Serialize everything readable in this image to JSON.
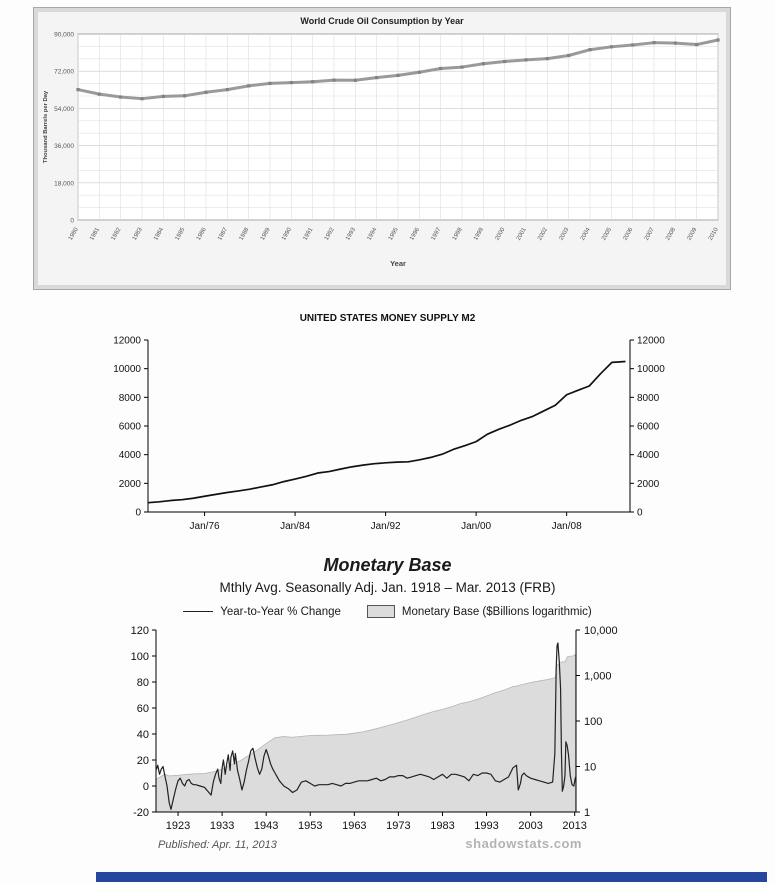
{
  "chart_data": [
    {
      "id": "world-crude-oil",
      "type": "line",
      "title": "World Crude Oil Consumption by Year",
      "xlabel": "Year",
      "ylabel": "Thousand Barrels per Day",
      "ylim": [
        0,
        90000
      ],
      "ytick_step": 18000,
      "grid": true,
      "line_color": "#9a9a9a",
      "marker_color": "#828282",
      "categories": [
        1980,
        1981,
        1982,
        1983,
        1984,
        1985,
        1986,
        1987,
        1988,
        1989,
        1990,
        1991,
        1992,
        1993,
        1994,
        1995,
        1996,
        1997,
        1998,
        1999,
        2000,
        2001,
        2002,
        2003,
        2004,
        2005,
        2006,
        2007,
        2008,
        2009,
        2010
      ],
      "values": [
        63100,
        60900,
        59500,
        58700,
        59800,
        60100,
        61800,
        63100,
        64900,
        66100,
        66500,
        66900,
        67700,
        67600,
        68900,
        70000,
        71500,
        73300,
        74000,
        75600,
        76700,
        77500,
        78100,
        79600,
        82400,
        83800,
        84700,
        85800,
        85600,
        84900,
        87100
      ]
    },
    {
      "id": "us-money-supply-m2",
      "type": "line",
      "title": "UNITED STATES MONEY SUPPLY M2",
      "ylim": [
        0,
        12000
      ],
      "ytick_step": 2000,
      "xlim": [
        1971,
        2013.6
      ],
      "line_color": "#111111",
      "xticks": [
        {
          "pos": 1976,
          "label": "Jan/76"
        },
        {
          "pos": 1984,
          "label": "Jan/84"
        },
        {
          "pos": 1992,
          "label": "Jan/92"
        },
        {
          "pos": 2000,
          "label": "Jan/00"
        },
        {
          "pos": 2008,
          "label": "Jan/08"
        }
      ],
      "points": [
        [
          1971,
          650
        ],
        [
          1972,
          710
        ],
        [
          1973,
          800
        ],
        [
          1974,
          860
        ],
        [
          1975,
          960
        ],
        [
          1976,
          1100
        ],
        [
          1977,
          1230
        ],
        [
          1978,
          1360
        ],
        [
          1979,
          1470
        ],
        [
          1980,
          1590
        ],
        [
          1981,
          1750
        ],
        [
          1982,
          1900
        ],
        [
          1983,
          2120
        ],
        [
          1984,
          2300
        ],
        [
          1985,
          2490
        ],
        [
          1986,
          2720
        ],
        [
          1987,
          2820
        ],
        [
          1988,
          2990
        ],
        [
          1989,
          3150
        ],
        [
          1990,
          3270
        ],
        [
          1991,
          3370
        ],
        [
          1992,
          3430
        ],
        [
          1993,
          3480
        ],
        [
          1994,
          3500
        ],
        [
          1995,
          3640
        ],
        [
          1996,
          3810
        ],
        [
          1997,
          4030
        ],
        [
          1998,
          4370
        ],
        [
          1999,
          4630
        ],
        [
          2000,
          4910
        ],
        [
          2001,
          5430
        ],
        [
          2002,
          5770
        ],
        [
          2003,
          6060
        ],
        [
          2004,
          6400
        ],
        [
          2005,
          6670
        ],
        [
          2006,
          7060
        ],
        [
          2007,
          7450
        ],
        [
          2008,
          8180
        ],
        [
          2009,
          8490
        ],
        [
          2010,
          8790
        ],
        [
          2011,
          9650
        ],
        [
          2012,
          10440
        ],
        [
          2013.2,
          10500
        ]
      ]
    },
    {
      "id": "monetary-base",
      "type": "line+area",
      "title": "Monetary Base",
      "subtitle": "Mthly Avg. Seasonally Adj. Jan. 1918 – Mar. 2013  (FRB)",
      "published": "Published: Apr. 11, 2013",
      "watermark": "shadowstats.com",
      "legend": [
        {
          "label": "Year-to-Year % Change",
          "type": "line",
          "color": "#222222"
        },
        {
          "label": "Monetary Base ($Billions logarithmic)",
          "type": "area",
          "color": "#dcdcdc"
        }
      ],
      "left_axis": {
        "min": -20,
        "max": 120,
        "step": 20
      },
      "right_axis": {
        "scale": "log",
        "min": 1,
        "max": 10000,
        "labels": [
          "1",
          "10",
          "100",
          "1,000",
          "10,000"
        ]
      },
      "xlim": [
        1918,
        2013.3
      ],
      "xticks": [
        1923,
        1933,
        1943,
        1953,
        1963,
        1973,
        1983,
        1993,
        2003,
        2013
      ],
      "base": [
        [
          1918,
          5.2
        ],
        [
          1920,
          6.8
        ],
        [
          1921,
          6.2
        ],
        [
          1923,
          6.4
        ],
        [
          1925,
          6.7
        ],
        [
          1927,
          6.9
        ],
        [
          1929,
          7.0
        ],
        [
          1931,
          7.6
        ],
        [
          1933,
          8.7
        ],
        [
          1935,
          10.8
        ],
        [
          1937,
          13.2
        ],
        [
          1939,
          17.5
        ],
        [
          1941,
          23
        ],
        [
          1943,
          32
        ],
        [
          1945,
          43
        ],
        [
          1947,
          45.5
        ],
        [
          1949,
          44
        ],
        [
          1951,
          46
        ],
        [
          1953,
          48
        ],
        [
          1955,
          48.5
        ],
        [
          1957,
          49
        ],
        [
          1959,
          50
        ],
        [
          1961,
          51
        ],
        [
          1963,
          54
        ],
        [
          1965,
          58
        ],
        [
          1967,
          64
        ],
        [
          1969,
          72
        ],
        [
          1971,
          81
        ],
        [
          1973,
          92
        ],
        [
          1975,
          105
        ],
        [
          1977,
          122
        ],
        [
          1979,
          142
        ],
        [
          1981,
          162
        ],
        [
          1983,
          180
        ],
        [
          1985,
          205
        ],
        [
          1987,
          240
        ],
        [
          1989,
          265
        ],
        [
          1991,
          300
        ],
        [
          1993,
          355
        ],
        [
          1995,
          420
        ],
        [
          1997,
          480
        ],
        [
          1999,
          570
        ],
        [
          2000,
          590
        ],
        [
          2001,
          630
        ],
        [
          2003,
          700
        ],
        [
          2005,
          760
        ],
        [
          2007,
          820
        ],
        [
          2008.6,
          900
        ],
        [
          2008.9,
          1650
        ],
        [
          2009.3,
          1750
        ],
        [
          2009.7,
          1900
        ],
        [
          2010.2,
          2000
        ],
        [
          2010.8,
          1990
        ],
        [
          2011.3,
          2550
        ],
        [
          2011.8,
          2650
        ],
        [
          2012.3,
          2670
        ],
        [
          2012.8,
          2720
        ],
        [
          2013.2,
          2900
        ]
      ],
      "pct_change": [
        [
          1918,
          12
        ],
        [
          1918.4,
          16
        ],
        [
          1918.8,
          9
        ],
        [
          1919.2,
          13
        ],
        [
          1919.6,
          15
        ],
        [
          1920,
          8
        ],
        [
          1920.5,
          0
        ],
        [
          1921,
          -13
        ],
        [
          1921.4,
          -18
        ],
        [
          1922,
          -9
        ],
        [
          1922.5,
          -2
        ],
        [
          1923,
          4
        ],
        [
          1923.5,
          6
        ],
        [
          1924,
          2
        ],
        [
          1924.5,
          0
        ],
        [
          1925,
          4
        ],
        [
          1925.5,
          5
        ],
        [
          1926,
          2
        ],
        [
          1926.5,
          1
        ],
        [
          1927,
          1
        ],
        [
          1928,
          0
        ],
        [
          1929,
          -1
        ],
        [
          1930,
          -5
        ],
        [
          1930.5,
          -7
        ],
        [
          1931,
          3
        ],
        [
          1931.5,
          9
        ],
        [
          1932,
          13
        ],
        [
          1932.3,
          6
        ],
        [
          1932.7,
          2
        ],
        [
          1933,
          14
        ],
        [
          1933.3,
          20
        ],
        [
          1933.7,
          9
        ],
        [
          1934,
          16
        ],
        [
          1934.4,
          24
        ],
        [
          1934.8,
          12
        ],
        [
          1935,
          22
        ],
        [
          1935.4,
          27
        ],
        [
          1935.8,
          17
        ],
        [
          1936,
          25
        ],
        [
          1936.5,
          12
        ],
        [
          1937,
          5
        ],
        [
          1937.5,
          -3
        ],
        [
          1938,
          3
        ],
        [
          1938.5,
          12
        ],
        [
          1939,
          19
        ],
        [
          1939.5,
          27
        ],
        [
          1940,
          29
        ],
        [
          1940.5,
          21
        ],
        [
          1941,
          14
        ],
        [
          1941.5,
          9
        ],
        [
          1942,
          13
        ],
        [
          1942.5,
          23
        ],
        [
          1943,
          28
        ],
        [
          1943.5,
          23
        ],
        [
          1944,
          17
        ],
        [
          1944.5,
          13
        ],
        [
          1945,
          10
        ],
        [
          1945.5,
          7
        ],
        [
          1946,
          4
        ],
        [
          1946.5,
          2
        ],
        [
          1947,
          0
        ],
        [
          1948,
          -2
        ],
        [
          1949,
          -5
        ],
        [
          1950,
          -3
        ],
        [
          1951,
          3
        ],
        [
          1952,
          4
        ],
        [
          1953,
          2
        ],
        [
          1954,
          0
        ],
        [
          1955,
          1
        ],
        [
          1956,
          1
        ],
        [
          1957,
          1
        ],
        [
          1958,
          2
        ],
        [
          1959,
          1
        ],
        [
          1960,
          0
        ],
        [
          1961,
          2
        ],
        [
          1962,
          2
        ],
        [
          1963,
          3
        ],
        [
          1964,
          4
        ],
        [
          1965,
          4
        ],
        [
          1966,
          4
        ],
        [
          1967,
          5
        ],
        [
          1968,
          6
        ],
        [
          1969,
          4
        ],
        [
          1970,
          5
        ],
        [
          1971,
          7
        ],
        [
          1972,
          7
        ],
        [
          1973,
          8
        ],
        [
          1974,
          8
        ],
        [
          1975,
          6
        ],
        [
          1976,
          7
        ],
        [
          1977,
          8
        ],
        [
          1978,
          9
        ],
        [
          1979,
          8
        ],
        [
          1980,
          7
        ],
        [
          1981,
          5
        ],
        [
          1982,
          7
        ],
        [
          1983,
          9
        ],
        [
          1984,
          6
        ],
        [
          1985,
          9
        ],
        [
          1986,
          9
        ],
        [
          1987,
          8
        ],
        [
          1988,
          7
        ],
        [
          1989,
          4
        ],
        [
          1990,
          9
        ],
        [
          1991,
          8
        ],
        [
          1992,
          10
        ],
        [
          1993,
          10
        ],
        [
          1994,
          9
        ],
        [
          1995,
          4
        ],
        [
          1996,
          3
        ],
        [
          1997,
          5
        ],
        [
          1998,
          7
        ],
        [
          1999,
          14
        ],
        [
          1999.8,
          16
        ],
        [
          2000.2,
          -3
        ],
        [
          2000.7,
          2
        ],
        [
          2001,
          8
        ],
        [
          2001.5,
          10
        ],
        [
          2002,
          8
        ],
        [
          2003,
          6
        ],
        [
          2004,
          5
        ],
        [
          2005,
          4
        ],
        [
          2006,
          3
        ],
        [
          2007,
          2
        ],
        [
          2008,
          3
        ],
        [
          2008.5,
          25
        ],
        [
          2008.8,
          90
        ],
        [
          2009,
          108
        ],
        [
          2009.2,
          110
        ],
        [
          2009.5,
          96
        ],
        [
          2009.8,
          75
        ],
        [
          2010,
          25
        ],
        [
          2010.2,
          -4
        ],
        [
          2010.5,
          0
        ],
        [
          2010.8,
          8
        ],
        [
          2011,
          34
        ],
        [
          2011.3,
          31
        ],
        [
          2011.6,
          24
        ],
        [
          2012,
          8
        ],
        [
          2012.4,
          1
        ],
        [
          2012.8,
          0
        ],
        [
          2013.2,
          7
        ]
      ]
    }
  ]
}
